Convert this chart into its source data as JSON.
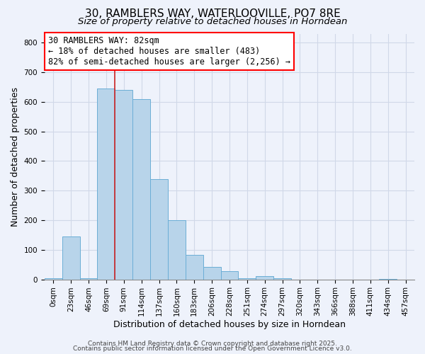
{
  "title": "30, RAMBLERS WAY, WATERLOOVILLE, PO7 8RE",
  "subtitle": "Size of property relative to detached houses in Horndean",
  "xlabel": "Distribution of detached houses by size in Horndean",
  "ylabel": "Number of detached properties",
  "bar_labels": [
    "0sqm",
    "23sqm",
    "46sqm",
    "69sqm",
    "91sqm",
    "114sqm",
    "137sqm",
    "160sqm",
    "183sqm",
    "206sqm",
    "228sqm",
    "251sqm",
    "274sqm",
    "297sqm",
    "320sqm",
    "343sqm",
    "366sqm",
    "388sqm",
    "411sqm",
    "434sqm",
    "457sqm"
  ],
  "bar_values": [
    5,
    145,
    5,
    645,
    640,
    610,
    338,
    200,
    83,
    43,
    27,
    5,
    11,
    5,
    0,
    0,
    0,
    0,
    0,
    1,
    0
  ],
  "bar_color": "#b8d4ea",
  "bar_edge_color": "#6baed6",
  "annotation_box_text": "30 RAMBLERS WAY: 82sqm\n← 18% of detached houses are smaller (483)\n82% of semi-detached houses are larger (2,256) →",
  "property_line_x": 3.5,
  "property_line_color": "#cc2222",
  "ylim": [
    0,
    830
  ],
  "yticks": [
    0,
    100,
    200,
    300,
    400,
    500,
    600,
    700,
    800
  ],
  "grid_color": "#d0d8e8",
  "background_color": "#eef2fb",
  "footer_line1": "Contains HM Land Registry data © Crown copyright and database right 2025.",
  "footer_line2": "Contains public sector information licensed under the Open Government Licence v3.0.",
  "title_fontsize": 11,
  "subtitle_fontsize": 9.5,
  "axis_label_fontsize": 9,
  "tick_fontsize": 7.5,
  "annotation_fontsize": 8.5,
  "footer_fontsize": 6.5
}
